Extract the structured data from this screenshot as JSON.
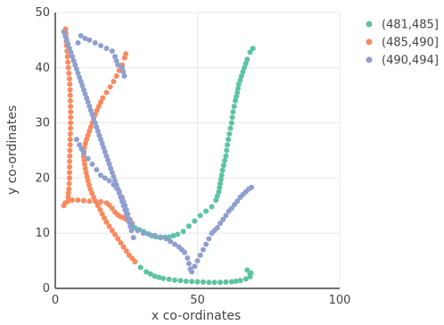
{
  "chart_data": {
    "type": "scatter",
    "xlabel": "x co-ordinates",
    "ylabel": "y co-ordinates",
    "xlim": [
      0,
      100
    ],
    "ylim": [
      0,
      50
    ],
    "x_ticks": [
      "0",
      "50",
      "100"
    ],
    "y_ticks": [
      "0",
      "10",
      "20",
      "30",
      "40",
      "50"
    ],
    "grid": true,
    "legend_position": "top-right",
    "series": [
      {
        "name": "(481,485]",
        "color": "#5cc4a0",
        "points": [
          [
            28,
            4.8
          ],
          [
            30,
            3.8
          ],
          [
            32,
            3.0
          ],
          [
            35,
            2.2
          ],
          [
            38,
            1.8
          ],
          [
            42,
            1.5
          ],
          [
            46,
            1.3
          ],
          [
            50,
            1.2
          ],
          [
            54,
            1.1
          ],
          [
            58,
            1.1
          ],
          [
            62,
            1.2
          ],
          [
            65,
            1.4
          ],
          [
            67,
            1.7
          ],
          [
            68.5,
            2.1
          ],
          [
            68.8,
            2.8
          ],
          [
            67.5,
            3.3
          ],
          [
            68.5,
            2.5
          ],
          [
            28,
            11
          ],
          [
            31,
            10.3
          ],
          [
            34,
            9.5
          ],
          [
            37,
            9.2
          ],
          [
            40,
            9.3
          ],
          [
            43,
            9.8
          ],
          [
            45,
            10.3
          ],
          [
            47,
            11.3
          ],
          [
            49,
            12.2
          ],
          [
            51,
            13.2
          ],
          [
            53,
            14.0
          ],
          [
            55,
            14.8
          ],
          [
            56.5,
            16
          ],
          [
            57.5,
            17.5
          ],
          [
            58,
            19
          ],
          [
            58.5,
            20.5
          ],
          [
            59.2,
            22.3
          ],
          [
            60,
            24
          ],
          [
            60.5,
            26
          ],
          [
            61.2,
            28
          ],
          [
            62,
            30
          ],
          [
            62.5,
            32
          ],
          [
            63.3,
            34
          ],
          [
            64,
            35.5
          ],
          [
            64.5,
            37
          ],
          [
            65.5,
            38.5
          ],
          [
            66.5,
            40
          ],
          [
            67.5,
            41.5
          ],
          [
            68.5,
            42.8
          ],
          [
            69.5,
            43.5
          ]
        ]
      },
      {
        "name": "(485,490]",
        "color": "#f98a5f",
        "points": [
          [
            3,
            15
          ],
          [
            3.5,
            15.5
          ],
          [
            4.5,
            15.8
          ],
          [
            6,
            16
          ],
          [
            8,
            16
          ],
          [
            10,
            15.9
          ],
          [
            12,
            15.8
          ],
          [
            14,
            15.8
          ],
          [
            16,
            15.7
          ],
          [
            18,
            15.5
          ],
          [
            19,
            15.1
          ],
          [
            20,
            14.5
          ],
          [
            21,
            13.8
          ],
          [
            22,
            13.3
          ],
          [
            23,
            13.0
          ],
          [
            24,
            12.8
          ],
          [
            25,
            12.5
          ],
          [
            26,
            12.2
          ],
          [
            27,
            11.8
          ],
          [
            3.6,
            47
          ],
          [
            3.8,
            45.5
          ],
          [
            4,
            44
          ],
          [
            4.3,
            42
          ],
          [
            4.6,
            40
          ],
          [
            5,
            38
          ],
          [
            5.2,
            36
          ],
          [
            5.3,
            34
          ],
          [
            5.4,
            32
          ],
          [
            5.4,
            30
          ],
          [
            5.3,
            28
          ],
          [
            5.2,
            26
          ],
          [
            5.1,
            24
          ],
          [
            5,
            22
          ],
          [
            5,
            20
          ],
          [
            4.8,
            18
          ],
          [
            4.5,
            16.5
          ],
          [
            28,
            4.9
          ],
          [
            26,
            6
          ],
          [
            24,
            7.5
          ],
          [
            22,
            9
          ],
          [
            20,
            10.5
          ],
          [
            18,
            12
          ],
          [
            16.5,
            13.5
          ],
          [
            15,
            15
          ],
          [
            13.5,
            16.5
          ],
          [
            12.3,
            18
          ],
          [
            11.5,
            19.5
          ],
          [
            10.8,
            21
          ],
          [
            10.3,
            22.5
          ],
          [
            10,
            24
          ],
          [
            10.2,
            25.5
          ],
          [
            11,
            27
          ],
          [
            12,
            28.5
          ],
          [
            13,
            30
          ],
          [
            14,
            31.5
          ],
          [
            15.3,
            33
          ],
          [
            16.7,
            34.5
          ],
          [
            18,
            35.5
          ],
          [
            19.3,
            36.5
          ],
          [
            20.5,
            37.5
          ],
          [
            21.5,
            38.5
          ],
          [
            22.5,
            39.5
          ],
          [
            23.5,
            40.5
          ],
          [
            24.4,
            41.8
          ],
          [
            24.8,
            42.5
          ]
        ]
      },
      {
        "name": "(490,494]",
        "color": "#8f9fd0",
        "points": [
          [
            3,
            46.5
          ],
          [
            4,
            45
          ],
          [
            5,
            43.5
          ],
          [
            6,
            42
          ],
          [
            7,
            40.5
          ],
          [
            8,
            39
          ],
          [
            9,
            37.5
          ],
          [
            10,
            36
          ],
          [
            11,
            34.5
          ],
          [
            12,
            33
          ],
          [
            13,
            31.5
          ],
          [
            14,
            30
          ],
          [
            15,
            28.5
          ],
          [
            16,
            27
          ],
          [
            17,
            25.5
          ],
          [
            18,
            24
          ],
          [
            19,
            22.5
          ],
          [
            20,
            21
          ],
          [
            21,
            19.5
          ],
          [
            22,
            18
          ],
          [
            23,
            16.5
          ],
          [
            24,
            15
          ],
          [
            25,
            13.5
          ],
          [
            26,
            12
          ],
          [
            26.8,
            10.5
          ],
          [
            27.5,
            9.2
          ],
          [
            8,
            44.5
          ],
          [
            9,
            45.8
          ],
          [
            10.5,
            45.3
          ],
          [
            12,
            45
          ],
          [
            14,
            44.5
          ],
          [
            16,
            44
          ],
          [
            18,
            43.5
          ],
          [
            20,
            43
          ],
          [
            21,
            42
          ],
          [
            22,
            40.5
          ],
          [
            23.5,
            40
          ],
          [
            24.3,
            38.5
          ],
          [
            7.5,
            27
          ],
          [
            8.5,
            26
          ],
          [
            10,
            24.5
          ],
          [
            11.5,
            23.5
          ],
          [
            13,
            22.5
          ],
          [
            14.5,
            21.5
          ],
          [
            16,
            20.5
          ],
          [
            17.5,
            20
          ],
          [
            19,
            19.5
          ],
          [
            20.5,
            18.8
          ],
          [
            21.5,
            18.2
          ],
          [
            22.5,
            17.5
          ],
          [
            23.5,
            16.5
          ],
          [
            24.5,
            15
          ],
          [
            25.5,
            13.5
          ],
          [
            27,
            11.5
          ],
          [
            29,
            10.5
          ],
          [
            31,
            10
          ],
          [
            33,
            9.8
          ],
          [
            35,
            9.6
          ],
          [
            37,
            9.3
          ],
          [
            39,
            9.0
          ],
          [
            40.5,
            8.5
          ],
          [
            42,
            8
          ],
          [
            43.5,
            7.5
          ],
          [
            44.5,
            7
          ],
          [
            45.5,
            6.5
          ],
          [
            46.5,
            5.5
          ],
          [
            47,
            4.5
          ],
          [
            47.5,
            3.5
          ],
          [
            48,
            3
          ],
          [
            49,
            4
          ],
          [
            50,
            5
          ],
          [
            51,
            6
          ],
          [
            52,
            7
          ],
          [
            53,
            8
          ],
          [
            54,
            9
          ],
          [
            55,
            10
          ],
          [
            56,
            10.5
          ],
          [
            57,
            11
          ],
          [
            58,
            11.8
          ],
          [
            59,
            12.5
          ],
          [
            60,
            13.2
          ],
          [
            61,
            14
          ],
          [
            62,
            14.5
          ],
          [
            63,
            15.2
          ],
          [
            64,
            15.8
          ],
          [
            65,
            16.5
          ],
          [
            66,
            17
          ],
          [
            67,
            17.5
          ],
          [
            68,
            18
          ],
          [
            69,
            18.3
          ]
        ]
      }
    ]
  }
}
